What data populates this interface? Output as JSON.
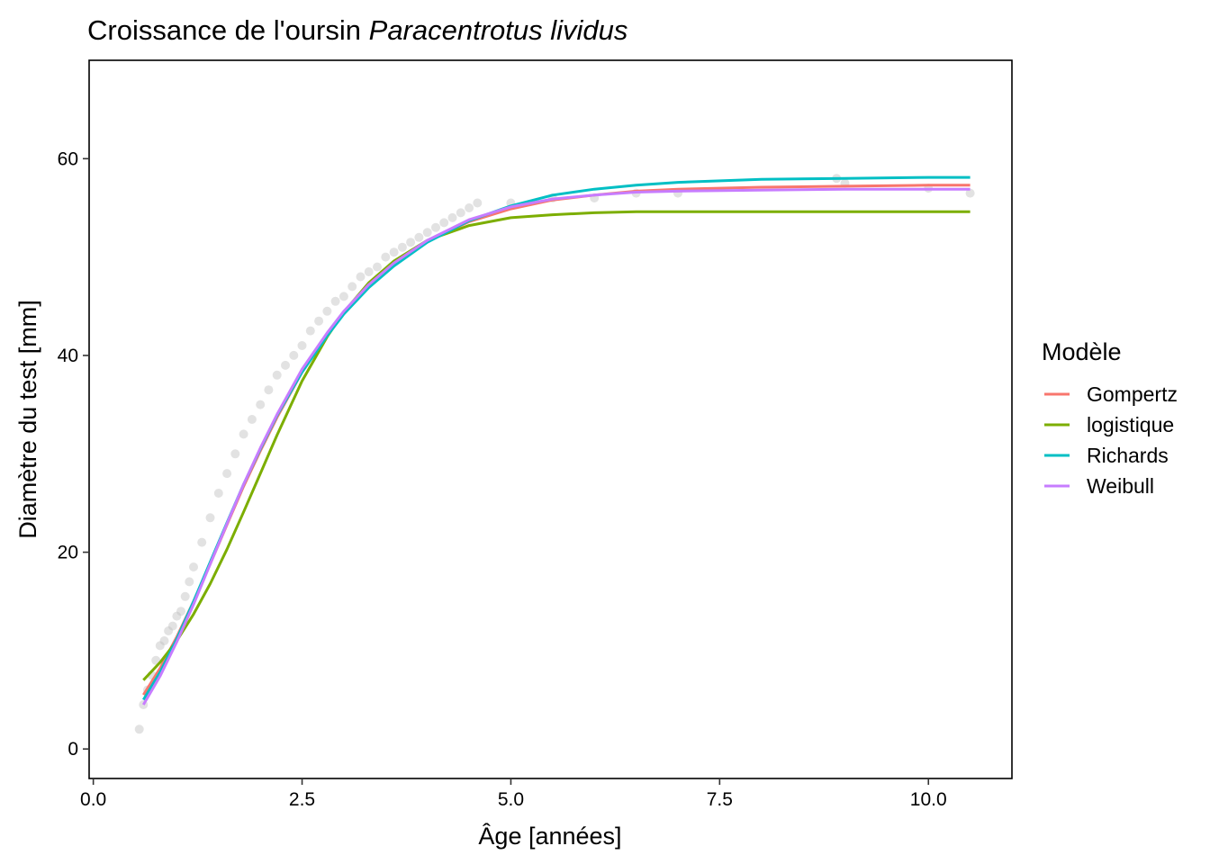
{
  "chart_data": {
    "type": "scatter",
    "title": "Croissance de l'oursin",
    "title_species": "Paracentrotus lividus",
    "xlabel": "Âge  [années]",
    "ylabel": "Diamètre du test  [mm]",
    "xlim": [
      -0.05,
      11.0
    ],
    "ylim": [
      -3,
      70
    ],
    "xticks": [
      0.0,
      2.5,
      5.0,
      7.5,
      10.0
    ],
    "xtick_labels": [
      "0.0",
      "2.5",
      "5.0",
      "7.5",
      "10.0"
    ],
    "yticks": [
      0,
      20,
      40,
      60
    ],
    "ytick_labels": [
      "0",
      "20",
      "40",
      "60"
    ],
    "grid": false,
    "legend_title": "Modèle",
    "legend_position": "right",
    "point_color": "#BEBEBE",
    "points": {
      "x": [
        0.55,
        0.6,
        0.65,
        0.7,
        0.75,
        0.8,
        0.85,
        0.9,
        0.95,
        1.0,
        1.05,
        1.1,
        1.15,
        1.2,
        1.3,
        1.4,
        1.5,
        1.6,
        1.7,
        1.8,
        1.9,
        2.0,
        2.1,
        2.2,
        2.3,
        2.4,
        2.5,
        2.6,
        2.7,
        2.8,
        2.9,
        3.0,
        3.1,
        3.2,
        3.3,
        3.4,
        3.5,
        3.6,
        3.7,
        3.8,
        3.9,
        4.0,
        4.1,
        4.2,
        4.3,
        4.4,
        4.5,
        4.6,
        5.0,
        5.5,
        6.0,
        6.5,
        7.0,
        8.9,
        9.0,
        10.0,
        10.5
      ],
      "y": [
        2.0,
        4.5,
        6.0,
        7.5,
        9.0,
        10.5,
        11.0,
        12.0,
        12.5,
        13.5,
        14.0,
        15.5,
        17.0,
        18.5,
        21.0,
        23.5,
        26.0,
        28.0,
        30.0,
        32.0,
        33.5,
        35.0,
        36.5,
        38.0,
        39.0,
        40.0,
        41.0,
        42.5,
        43.5,
        44.5,
        45.5,
        46.0,
        47.0,
        48.0,
        48.5,
        49.0,
        50.0,
        50.5,
        51.0,
        51.5,
        52.0,
        52.5,
        53.0,
        53.5,
        54.0,
        54.5,
        55.0,
        55.5,
        55.5,
        56.0,
        56.0,
        56.5,
        56.5,
        58.0,
        57.5,
        57.0,
        56.5
      ]
    },
    "series": [
      {
        "name": "Gompertz",
        "color": "#F8766D",
        "x": [
          0.6,
          0.8,
          1.0,
          1.2,
          1.4,
          1.6,
          1.8,
          2.0,
          2.2,
          2.5,
          2.8,
          3.0,
          3.3,
          3.6,
          4.0,
          4.5,
          5.0,
          5.5,
          6.0,
          6.5,
          7.0,
          8.0,
          9.0,
          10.0,
          10.5
        ],
        "y": [
          5.5,
          8.2,
          11.4,
          15.0,
          18.8,
          22.8,
          26.7,
          30.3,
          33.7,
          38.3,
          42.1,
          44.3,
          47.1,
          49.3,
          51.6,
          53.6,
          54.9,
          55.8,
          56.3,
          56.7,
          56.9,
          57.1,
          57.2,
          57.3,
          57.3
        ]
      },
      {
        "name": "logistique",
        "color": "#7CAE00",
        "x": [
          0.6,
          0.8,
          1.0,
          1.2,
          1.4,
          1.6,
          1.8,
          2.0,
          2.2,
          2.5,
          2.8,
          3.0,
          3.3,
          3.6,
          4.0,
          4.5,
          5.0,
          5.5,
          6.0,
          6.5,
          7.0,
          8.0,
          9.0,
          10.0,
          10.5
        ],
        "y": [
          7.0,
          8.8,
          11.0,
          13.7,
          16.8,
          20.3,
          24.1,
          28.0,
          31.9,
          37.4,
          41.9,
          44.4,
          47.4,
          49.6,
          51.7,
          53.2,
          54.0,
          54.3,
          54.5,
          54.6,
          54.6,
          54.6,
          54.6,
          54.6,
          54.6
        ]
      },
      {
        "name": "Richards",
        "color": "#00BFC4",
        "x": [
          0.6,
          0.8,
          1.0,
          1.2,
          1.4,
          1.6,
          1.8,
          2.0,
          2.2,
          2.5,
          2.8,
          3.0,
          3.3,
          3.6,
          4.0,
          4.5,
          5.0,
          5.5,
          6.0,
          6.5,
          7.0,
          8.0,
          9.0,
          10.0,
          10.5
        ],
        "y": [
          5.0,
          7.8,
          11.2,
          15.0,
          19.0,
          23.0,
          26.9,
          30.5,
          33.9,
          38.3,
          42.0,
          44.2,
          46.9,
          49.1,
          51.5,
          53.7,
          55.2,
          56.3,
          56.9,
          57.3,
          57.6,
          57.9,
          58.0,
          58.1,
          58.1
        ]
      },
      {
        "name": "Weibull",
        "color": "#C77CFF",
        "x": [
          0.6,
          0.8,
          1.0,
          1.2,
          1.4,
          1.6,
          1.8,
          2.0,
          2.2,
          2.5,
          2.8,
          3.0,
          3.3,
          3.6,
          4.0,
          4.5,
          5.0,
          5.5,
          6.0,
          6.5,
          7.0,
          8.0,
          9.0,
          10.0,
          10.5
        ],
        "y": [
          4.5,
          7.4,
          10.9,
          14.7,
          18.8,
          22.9,
          26.9,
          30.6,
          34.0,
          38.6,
          42.3,
          44.5,
          47.2,
          49.4,
          51.7,
          53.8,
          55.1,
          55.9,
          56.3,
          56.6,
          56.7,
          56.8,
          56.9,
          56.9,
          56.9
        ]
      }
    ]
  }
}
